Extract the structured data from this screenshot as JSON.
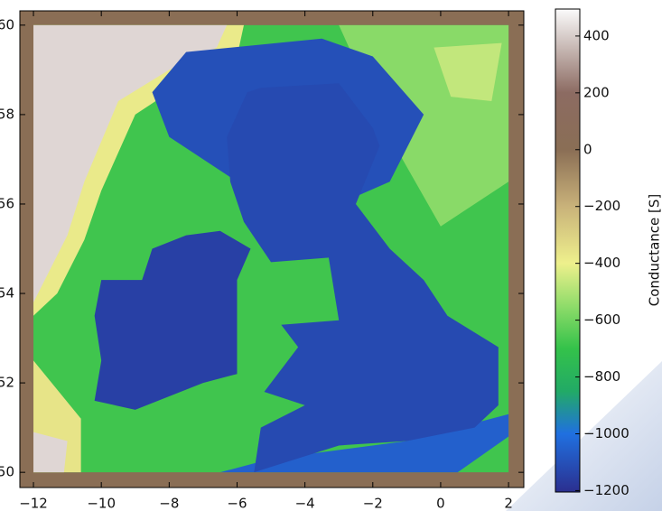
{
  "chart_data": {
    "type": "heatmap",
    "xlim": [
      -12.4,
      2.45
    ],
    "ylim": [
      49.66,
      60.32
    ],
    "xticks": [
      {
        "value": -12,
        "label": "−12"
      },
      {
        "value": -10,
        "label": "−10"
      },
      {
        "value": -8,
        "label": "−8"
      },
      {
        "value": -6,
        "label": "−6"
      },
      {
        "value": -4,
        "label": "−4"
      },
      {
        "value": -2,
        "label": "−2"
      },
      0,
      2
    ],
    "yticks": [
      50,
      52,
      54,
      56,
      58,
      60
    ],
    "colorbar": {
      "label": "Conductance [S]",
      "clim": [
        -1205,
        495
      ],
      "ticks": [
        {
          "value": -1200,
          "label": "−1200"
        },
        {
          "value": -1000,
          "label": "−1000"
        },
        {
          "value": -800,
          "label": "−800"
        },
        {
          "value": -600,
          "label": "−600"
        },
        {
          "value": -400,
          "label": "−400"
        },
        {
          "value": -200,
          "label": "−200"
        },
        0,
        200,
        400
      ],
      "colormap": [
        {
          "value": -1205,
          "color": "#2b2f8f"
        },
        {
          "value": -1000,
          "color": "#2070e0"
        },
        {
          "value": -850,
          "color": "#22aa66"
        },
        {
          "value": -700,
          "color": "#34c24a"
        },
        {
          "value": -550,
          "color": "#8fdc6a"
        },
        {
          "value": -400,
          "color": "#eef08c"
        },
        {
          "value": -200,
          "color": "#c9b27a"
        },
        {
          "value": 0,
          "color": "#8a6e55"
        },
        {
          "value": 200,
          "color": "#8c6b62"
        },
        {
          "value": 495,
          "color": "#fbfbfb"
        }
      ]
    },
    "regions": [
      {
        "value": 0,
        "polygon": [
          [
            -12.4,
            49.66
          ],
          [
            2.45,
            49.66
          ],
          [
            2.45,
            60.32
          ],
          [
            -12.4,
            60.32
          ]
        ]
      },
      {
        "value": -680,
        "polygon": [
          [
            -12,
            50
          ],
          [
            2,
            50
          ],
          [
            2,
            60
          ],
          [
            -12,
            60
          ]
        ]
      },
      {
        "value": -560,
        "polygon": [
          [
            -3,
            60
          ],
          [
            2,
            60
          ],
          [
            2,
            56.5
          ],
          [
            0,
            55.5
          ],
          [
            -1.5,
            57.5
          ]
        ]
      },
      {
        "value": -470,
        "polygon": [
          [
            -0.2,
            59.5
          ],
          [
            1.8,
            59.6
          ],
          [
            1.5,
            58.3
          ],
          [
            0.3,
            58.4
          ]
        ]
      },
      {
        "value": -380,
        "polygon": [
          [
            -12,
            60
          ],
          [
            -5.8,
            60
          ],
          [
            -6,
            59.3
          ],
          [
            -7.6,
            58.7
          ],
          [
            -9,
            58
          ],
          [
            -10,
            56.3
          ],
          [
            -10.5,
            55.2
          ],
          [
            -11.3,
            54
          ],
          [
            -12,
            53.5
          ]
        ]
      },
      {
        "value": 420,
        "polygon": [
          [
            -12,
            60
          ],
          [
            -6.3,
            60
          ],
          [
            -6.6,
            59.5
          ],
          [
            -8,
            59
          ],
          [
            -9.5,
            58.3
          ],
          [
            -10.5,
            56.5
          ],
          [
            -11,
            55.3
          ],
          [
            -12,
            53.8
          ]
        ]
      },
      {
        "value": -360,
        "polygon": [
          [
            -12,
            50
          ],
          [
            -10.6,
            50
          ],
          [
            -10.6,
            51.2
          ],
          [
            -12,
            52.5
          ]
        ]
      },
      {
        "value": 420,
        "polygon": [
          [
            -12,
            50
          ],
          [
            -11.1,
            50
          ],
          [
            -11,
            50.7
          ],
          [
            -12,
            50.9
          ]
        ]
      },
      {
        "value": -1100,
        "polygon": [
          [
            -7.5,
            59.4
          ],
          [
            -3.5,
            59.7
          ],
          [
            -2,
            59.3
          ],
          [
            -0.5,
            58
          ],
          [
            -1.5,
            56.5
          ],
          [
            -3,
            56
          ],
          [
            -6,
            56.5
          ],
          [
            -8,
            57.5
          ],
          [
            -8.5,
            58.5
          ]
        ]
      },
      {
        "value": -1050,
        "polygon": [
          [
            -6.5,
            50
          ],
          [
            0.5,
            50
          ],
          [
            2,
            50.8
          ],
          [
            2,
            51.3
          ],
          [
            -1,
            50.7
          ],
          [
            -5,
            50.3
          ]
        ]
      },
      {
        "value": -1150,
        "polygon": [
          [
            -10.2,
            51.6
          ],
          [
            -9,
            51.4
          ],
          [
            -7,
            52
          ],
          [
            -6,
            52.2
          ],
          [
            -6,
            53.5
          ],
          [
            -6,
            54.3
          ],
          [
            -5.6,
            55
          ],
          [
            -6.5,
            55.4
          ],
          [
            -7.5,
            55.3
          ],
          [
            -8.5,
            55
          ],
          [
            -8.8,
            54.3
          ],
          [
            -10,
            54.3
          ],
          [
            -10.2,
            53.5
          ],
          [
            -10,
            52.5
          ]
        ]
      },
      {
        "value": -1120,
        "polygon": [
          [
            -5.3,
            58.6
          ],
          [
            -3,
            58.7
          ],
          [
            -2,
            57.7
          ],
          [
            -1.8,
            57.3
          ],
          [
            -2.5,
            56
          ],
          [
            -1.5,
            55
          ],
          [
            -0.5,
            54.3
          ],
          [
            0.2,
            53.5
          ],
          [
            1.7,
            52.8
          ],
          [
            1.7,
            51.5
          ],
          [
            1,
            51
          ],
          [
            -1,
            50.7
          ],
          [
            -3,
            50.6
          ],
          [
            -5.5,
            50
          ],
          [
            -5.3,
            51
          ],
          [
            -4,
            51.5
          ],
          [
            -5.2,
            51.8
          ],
          [
            -4.2,
            52.8
          ],
          [
            -4.7,
            53.3
          ],
          [
            -3,
            53.4
          ],
          [
            -3.3,
            54.8
          ],
          [
            -5,
            54.7
          ],
          [
            -5.8,
            55.6
          ],
          [
            -6.2,
            56.5
          ],
          [
            -6.3,
            57.5
          ],
          [
            -5.7,
            58.5
          ]
        ]
      }
    ]
  }
}
